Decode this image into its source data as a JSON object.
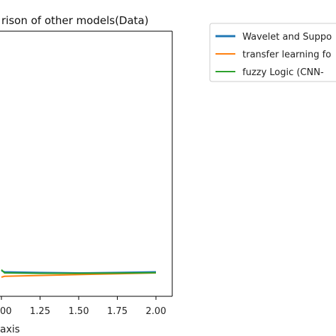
{
  "chart_data": {
    "type": "line",
    "title": "rison  of other models(Data)",
    "xlabel": "axis",
    "ylabel": "",
    "x_tick_labels": [
      "00",
      "1.25",
      "1.50",
      "1.75",
      "2.00"
    ],
    "x_ticks": [
      1.0,
      1.25,
      1.5,
      1.75,
      2.0
    ],
    "xlim": [
      1.0,
      2.1
    ],
    "ylim": [
      0,
      1
    ],
    "grid": false,
    "legend_position": "top-right, outside plot",
    "series": [
      {
        "name": "Wavelet and Suppo",
        "color": "#1f77b4",
        "x": [
          1.0,
          1.02,
          1.25,
          1.5,
          1.75,
          2.0
        ],
        "y": [
          0.03,
          0.025,
          0.022,
          0.02,
          0.022,
          0.025
        ]
      },
      {
        "name": "transfer learning fo",
        "color": "#ff7f0e",
        "x": [
          1.0,
          1.02,
          1.25,
          1.5,
          1.75,
          2.0
        ],
        "y": [
          0.0,
          0.004,
          0.008,
          0.012,
          0.016,
          0.02
        ]
      },
      {
        "name": "fuzzy Logic (CNN-",
        "color": "#2ca02c",
        "x": [
          1.0,
          1.02,
          1.25,
          1.5,
          1.75,
          2.0
        ],
        "y": [
          0.035,
          0.02,
          0.018,
          0.018,
          0.019,
          0.021
        ]
      }
    ]
  }
}
